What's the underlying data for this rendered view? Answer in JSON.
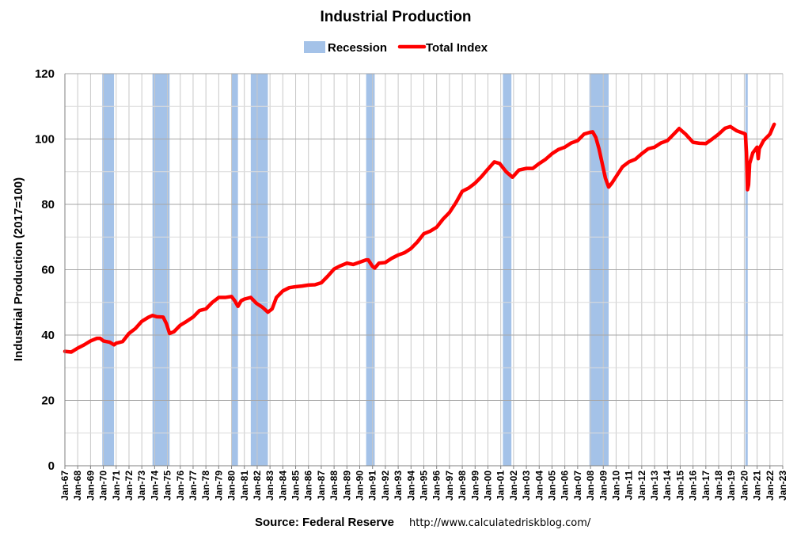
{
  "chart_data": {
    "type": "line",
    "title": "Industrial Production",
    "ylabel": "Industrial Production (2017=100)",
    "xlabel": "",
    "ylim": [
      0,
      120
    ],
    "yticks": [
      0,
      20,
      40,
      60,
      80,
      100,
      120
    ],
    "xlim": [
      "1967-01",
      "2023-01"
    ],
    "xtick_labels": [
      "Jan-67",
      "Jan-68",
      "Jan-69",
      "Jan-70",
      "Jan-71",
      "Jan-72",
      "Jan-73",
      "Jan-74",
      "Jan-75",
      "Jan-76",
      "Jan-77",
      "Jan-78",
      "Jan-79",
      "Jan-80",
      "Jan-81",
      "Jan-82",
      "Jan-83",
      "Jan-84",
      "Jan-85",
      "Jan-86",
      "Jan-87",
      "Jan-88",
      "Jan-89",
      "Jan-90",
      "Jan-91",
      "Jan-92",
      "Jan-93",
      "Jan-94",
      "Jan-95",
      "Jan-96",
      "Jan-97",
      "Jan-98",
      "Jan-99",
      "Jan-00",
      "Jan-01",
      "Jan-02",
      "Jan-03",
      "Jan-04",
      "Jan-05",
      "Jan-06",
      "Jan-07",
      "Jan-08",
      "Jan-09",
      "Jan-10",
      "Jan-11",
      "Jan-12",
      "Jan-13",
      "Jan-14",
      "Jan-15",
      "Jan-16",
      "Jan-17",
      "Jan-18",
      "Jan-19",
      "Jan-20",
      "Jan-21",
      "Jan-22",
      "Jan-23"
    ],
    "grid": true,
    "legend_position": "top-center",
    "legend": [
      {
        "label": "Recession",
        "kind": "area",
        "color": "#a4c2e8"
      },
      {
        "label": "Total Index",
        "kind": "line",
        "color": "#ff0000"
      }
    ],
    "recessions": [
      [
        "1969-12",
        "1970-11"
      ],
      [
        "1973-11",
        "1975-03"
      ],
      [
        "1980-01",
        "1980-07"
      ],
      [
        "1981-07",
        "1982-11"
      ],
      [
        "1990-07",
        "1991-03"
      ],
      [
        "2001-03",
        "2001-11"
      ],
      [
        "2007-12",
        "2009-06"
      ],
      [
        "2020-02",
        "2020-04"
      ]
    ],
    "series": [
      {
        "name": "Total Index",
        "color": "#ff0000",
        "points": [
          [
            "1967-01",
            35.0
          ],
          [
            "1967-07",
            34.8
          ],
          [
            "1968-01",
            36.0
          ],
          [
            "1968-07",
            37.0
          ],
          [
            "1969-01",
            38.2
          ],
          [
            "1969-07",
            39.0
          ],
          [
            "1969-10",
            39.0
          ],
          [
            "1970-01",
            38.2
          ],
          [
            "1970-07",
            37.8
          ],
          [
            "1970-11",
            37.0
          ],
          [
            "1971-01",
            37.5
          ],
          [
            "1971-07",
            38.0
          ],
          [
            "1972-01",
            40.5
          ],
          [
            "1972-07",
            42.0
          ],
          [
            "1973-01",
            44.2
          ],
          [
            "1973-07",
            45.4
          ],
          [
            "1973-11",
            46.0
          ],
          [
            "1974-03",
            45.6
          ],
          [
            "1974-09",
            45.5
          ],
          [
            "1974-12",
            43.5
          ],
          [
            "1975-03",
            40.5
          ],
          [
            "1975-07",
            41.0
          ],
          [
            "1976-01",
            43.0
          ],
          [
            "1976-07",
            44.2
          ],
          [
            "1977-01",
            45.5
          ],
          [
            "1977-07",
            47.5
          ],
          [
            "1978-01",
            48.0
          ],
          [
            "1978-07",
            50.0
          ],
          [
            "1979-01",
            51.5
          ],
          [
            "1979-07",
            51.5
          ],
          [
            "1980-01",
            51.8
          ],
          [
            "1980-04",
            50.5
          ],
          [
            "1980-07",
            48.8
          ],
          [
            "1980-10",
            50.5
          ],
          [
            "1981-01",
            51.0
          ],
          [
            "1981-07",
            51.5
          ],
          [
            "1981-12",
            49.8
          ],
          [
            "1982-06",
            48.5
          ],
          [
            "1982-11",
            47.0
          ],
          [
            "1983-03",
            48.0
          ],
          [
            "1983-07",
            51.5
          ],
          [
            "1984-01",
            53.5
          ],
          [
            "1984-07",
            54.5
          ],
          [
            "1985-01",
            54.8
          ],
          [
            "1985-07",
            55.0
          ],
          [
            "1986-01",
            55.3
          ],
          [
            "1986-07",
            55.4
          ],
          [
            "1987-01",
            56.0
          ],
          [
            "1987-07",
            58.0
          ],
          [
            "1988-01",
            60.2
          ],
          [
            "1988-07",
            61.2
          ],
          [
            "1989-01",
            62.0
          ],
          [
            "1989-07",
            61.6
          ],
          [
            "1990-01",
            62.3
          ],
          [
            "1990-07",
            63.0
          ],
          [
            "1990-09",
            63.0
          ],
          [
            "1991-01",
            61.0
          ],
          [
            "1991-03",
            60.5
          ],
          [
            "1991-07",
            62.0
          ],
          [
            "1992-01",
            62.2
          ],
          [
            "1992-07",
            63.5
          ],
          [
            "1993-01",
            64.5
          ],
          [
            "1993-07",
            65.2
          ],
          [
            "1994-01",
            66.5
          ],
          [
            "1994-07",
            68.5
          ],
          [
            "1995-01",
            71.0
          ],
          [
            "1995-07",
            71.8
          ],
          [
            "1996-01",
            73.0
          ],
          [
            "1996-07",
            75.5
          ],
          [
            "1997-01",
            77.5
          ],
          [
            "1997-07",
            80.5
          ],
          [
            "1998-01",
            84.0
          ],
          [
            "1998-07",
            85.0
          ],
          [
            "1999-01",
            86.5
          ],
          [
            "1999-07",
            88.5
          ],
          [
            "2000-01",
            90.8
          ],
          [
            "2000-07",
            93.0
          ],
          [
            "2000-12",
            92.5
          ],
          [
            "2001-06",
            90.0
          ],
          [
            "2001-12",
            88.3
          ],
          [
            "2002-06",
            90.5
          ],
          [
            "2003-01",
            91.0
          ],
          [
            "2003-07",
            91.0
          ],
          [
            "2004-01",
            92.5
          ],
          [
            "2004-07",
            93.8
          ],
          [
            "2005-01",
            95.5
          ],
          [
            "2005-07",
            96.8
          ],
          [
            "2006-01",
            97.5
          ],
          [
            "2006-07",
            98.8
          ],
          [
            "2007-01",
            99.5
          ],
          [
            "2007-07",
            101.5
          ],
          [
            "2007-12",
            102.0
          ],
          [
            "2008-03",
            102.2
          ],
          [
            "2008-06",
            100.5
          ],
          [
            "2008-09",
            97.0
          ],
          [
            "2008-12",
            92.5
          ],
          [
            "2009-03",
            88.0
          ],
          [
            "2009-06",
            85.3
          ],
          [
            "2009-09",
            86.5
          ],
          [
            "2010-01",
            88.5
          ],
          [
            "2010-07",
            91.5
          ],
          [
            "2011-01",
            93.0
          ],
          [
            "2011-07",
            93.8
          ],
          [
            "2012-01",
            95.5
          ],
          [
            "2012-07",
            97.0
          ],
          [
            "2013-01",
            97.5
          ],
          [
            "2013-07",
            98.8
          ],
          [
            "2014-01",
            99.5
          ],
          [
            "2014-07",
            101.5
          ],
          [
            "2014-12",
            103.2
          ],
          [
            "2015-06",
            101.5
          ],
          [
            "2016-01",
            99.0
          ],
          [
            "2016-07",
            98.7
          ],
          [
            "2017-01",
            98.6
          ],
          [
            "2017-07",
            100.0
          ],
          [
            "2018-01",
            101.5
          ],
          [
            "2018-07",
            103.3
          ],
          [
            "2018-12",
            103.8
          ],
          [
            "2019-06",
            102.5
          ],
          [
            "2019-12",
            101.8
          ],
          [
            "2020-02",
            101.5
          ],
          [
            "2020-03",
            96.0
          ],
          [
            "2020-04",
            84.5
          ],
          [
            "2020-05",
            86.0
          ],
          [
            "2020-06",
            92.5
          ],
          [
            "2020-09",
            95.8
          ],
          [
            "2021-01",
            97.5
          ],
          [
            "2021-02",
            94.0
          ],
          [
            "2021-03",
            97.0
          ],
          [
            "2021-07",
            99.5
          ],
          [
            "2022-01",
            101.5
          ],
          [
            "2022-04",
            103.8
          ],
          [
            "2022-05",
            104.5
          ]
        ]
      }
    ]
  },
  "source": {
    "label": "Source: Federal Reserve",
    "url": "http://www.calculatedriskblog.com/"
  }
}
